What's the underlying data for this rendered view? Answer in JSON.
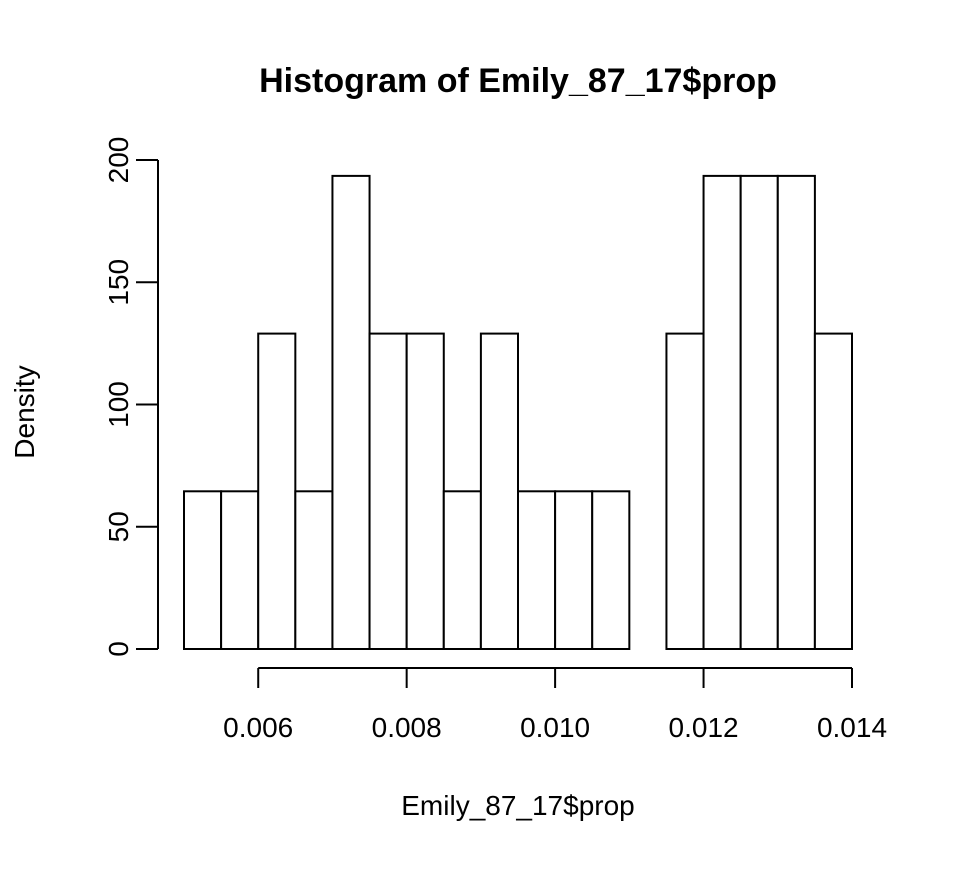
{
  "chart_data": {
    "type": "bar",
    "title": "Histogram of Emily_87_17$prop",
    "xlabel": "Emily_87_17$prop",
    "ylabel": "Density",
    "xlim": [
      0.005,
      0.014
    ],
    "ylim": [
      0,
      200
    ],
    "x_ticks": [
      {
        "value": 0.006,
        "label": "0.006"
      },
      {
        "value": 0.008,
        "label": "0.008"
      },
      {
        "value": 0.01,
        "label": "0.010"
      },
      {
        "value": 0.012,
        "label": "0.012"
      },
      {
        "value": 0.014,
        "label": "0.014"
      }
    ],
    "y_ticks": [
      {
        "value": 0,
        "label": "0"
      },
      {
        "value": 50,
        "label": "50"
      },
      {
        "value": 100,
        "label": "100"
      },
      {
        "value": 150,
        "label": "150"
      },
      {
        "value": 200,
        "label": "200"
      }
    ],
    "bins": [
      {
        "start": 0.005,
        "end": 0.0055,
        "density": 64.5
      },
      {
        "start": 0.0055,
        "end": 0.006,
        "density": 64.5
      },
      {
        "start": 0.006,
        "end": 0.0065,
        "density": 129
      },
      {
        "start": 0.0065,
        "end": 0.007,
        "density": 64.5
      },
      {
        "start": 0.007,
        "end": 0.0075,
        "density": 193.5
      },
      {
        "start": 0.0075,
        "end": 0.008,
        "density": 129
      },
      {
        "start": 0.008,
        "end": 0.0085,
        "density": 129
      },
      {
        "start": 0.0085,
        "end": 0.009,
        "density": 64.5
      },
      {
        "start": 0.009,
        "end": 0.0095,
        "density": 129
      },
      {
        "start": 0.0095,
        "end": 0.01,
        "density": 64.5
      },
      {
        "start": 0.01,
        "end": 0.0105,
        "density": 64.5
      },
      {
        "start": 0.0105,
        "end": 0.011,
        "density": 64.5
      },
      {
        "start": 0.011,
        "end": 0.0115,
        "density": 0
      },
      {
        "start": 0.0115,
        "end": 0.012,
        "density": 129
      },
      {
        "start": 0.012,
        "end": 0.0125,
        "density": 193.5
      },
      {
        "start": 0.0125,
        "end": 0.013,
        "density": 193.5
      },
      {
        "start": 0.013,
        "end": 0.0135,
        "density": 193.5
      },
      {
        "start": 0.0135,
        "end": 0.014,
        "density": 129
      }
    ],
    "bar_fill": "#ffffff",
    "bar_stroke": "#000000",
    "grid": false,
    "legend": "none"
  }
}
